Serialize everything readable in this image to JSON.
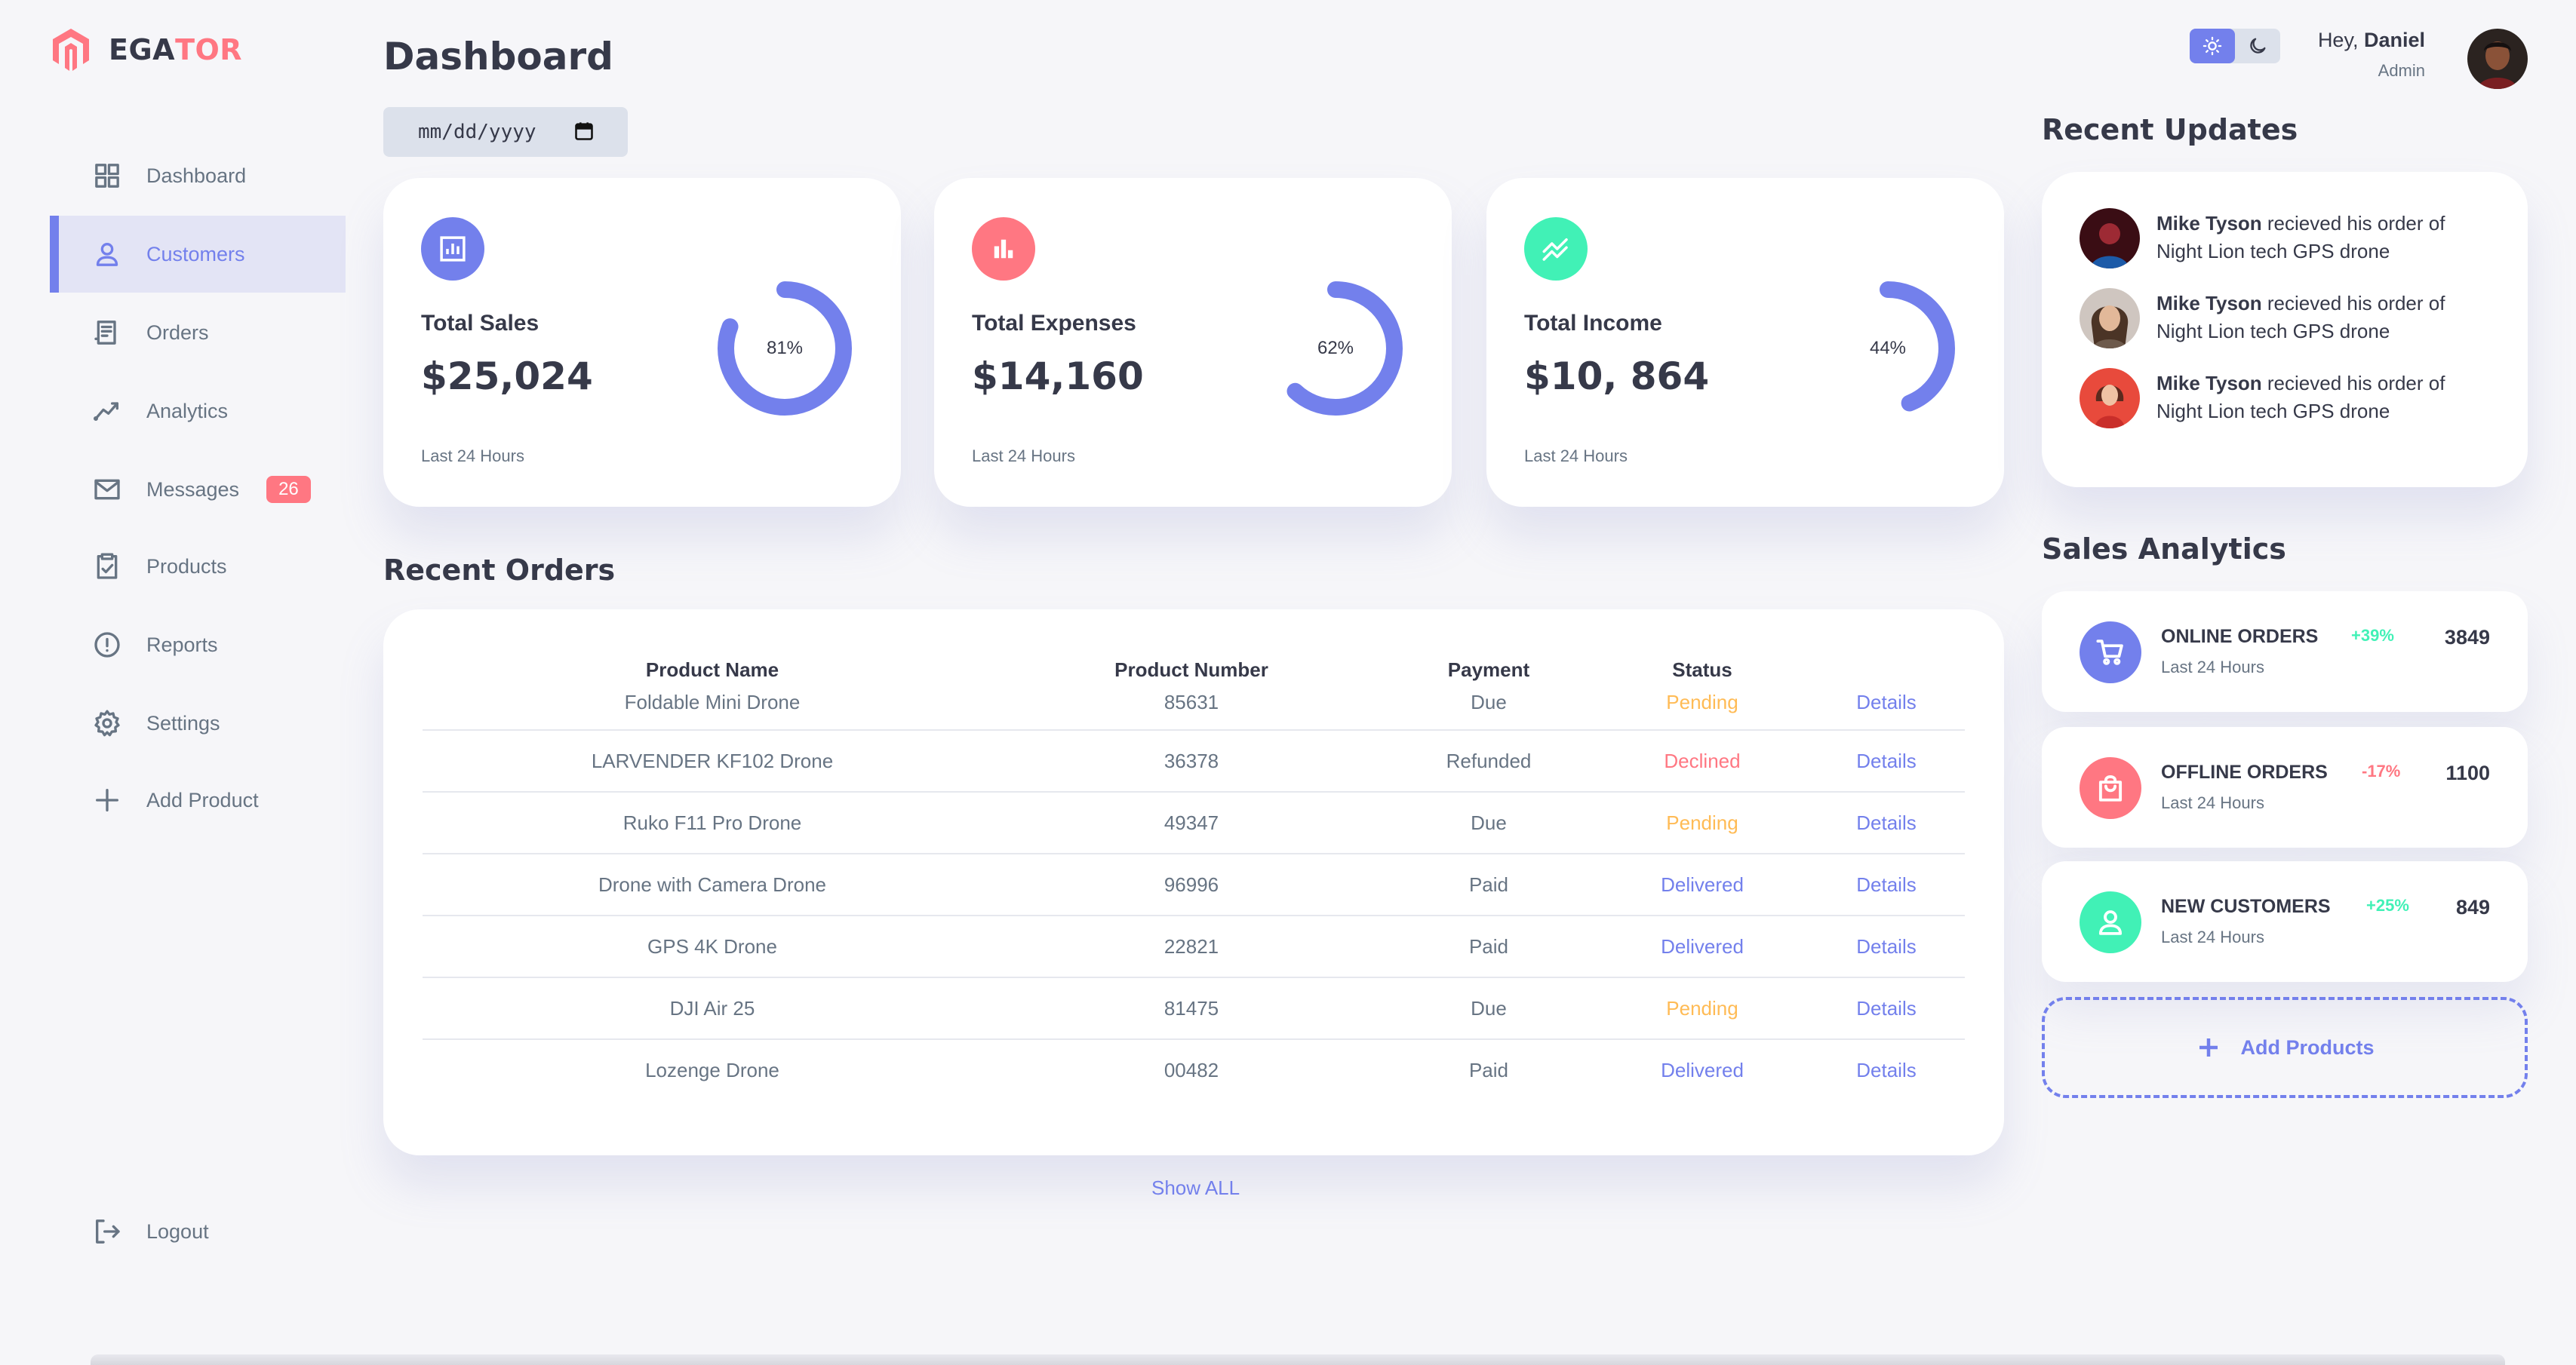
{
  "brand": {
    "part1": "EGA",
    "part2": "TOR",
    "accent": "#ff7782"
  },
  "sidebar": {
    "items": [
      {
        "label": "Dashboard",
        "icon": "grid-icon"
      },
      {
        "label": "Customers",
        "icon": "person-icon",
        "active": true
      },
      {
        "label": "Orders",
        "icon": "receipt-icon"
      },
      {
        "label": "Analytics",
        "icon": "chart-line-icon"
      },
      {
        "label": "Messages",
        "icon": "mail-icon",
        "badge": "26"
      },
      {
        "label": "Products",
        "icon": "clipboard-check-icon"
      },
      {
        "label": "Reports",
        "icon": "alert-circle-icon"
      },
      {
        "label": "Settings",
        "icon": "gear-icon"
      },
      {
        "label": "Add Product",
        "icon": "plus-icon"
      }
    ],
    "logout": "Logout"
  },
  "main": {
    "title": "Dashboard",
    "date_placeholder": "mm/dd/yyyy",
    "cards": [
      {
        "title": "Total Sales",
        "value": "$25,024",
        "sub": "Last 24 Hours",
        "percent": 81,
        "percent_label": "81%",
        "icon_color": "#7380ec"
      },
      {
        "title": "Total Expenses",
        "value": "$14,160",
        "sub": "Last 24 Hours",
        "percent": 62,
        "percent_label": "62%",
        "icon_color": "#ff7782"
      },
      {
        "title": "Total Income",
        "value": "$10, 864",
        "sub": "Last 24 Hours",
        "percent": 44,
        "percent_label": "44%",
        "icon_color": "#41f1b6"
      }
    ],
    "recent_orders": {
      "title": "Recent Orders",
      "headers": [
        "Product Name",
        "Product Number",
        "Payment",
        "Status",
        ""
      ],
      "rows": [
        {
          "name": "Foldable Mini Drone",
          "number": "85631",
          "payment": "Due",
          "status": "Pending",
          "link": "Details"
        },
        {
          "name": "LARVENDER KF102 Drone",
          "number": "36378",
          "payment": "Refunded",
          "status": "Declined",
          "link": "Details"
        },
        {
          "name": "Ruko F11 Pro Drone",
          "number": "49347",
          "payment": "Due",
          "status": "Pending",
          "link": "Details"
        },
        {
          "name": "Drone with Camera Drone",
          "number": "96996",
          "payment": "Paid",
          "status": "Delivered",
          "link": "Details"
        },
        {
          "name": "GPS 4K Drone",
          "number": "22821",
          "payment": "Paid",
          "status": "Delivered",
          "link": "Details"
        },
        {
          "name": "DJI Air 25",
          "number": "81475",
          "payment": "Due",
          "status": "Pending",
          "link": "Details"
        },
        {
          "name": "Lozenge Drone",
          "number": "00482",
          "payment": "Paid",
          "status": "Delivered",
          "link": "Details"
        }
      ],
      "show_all": "Show ALL"
    }
  },
  "right": {
    "greeting": "Hey,",
    "user_name": "Daniel",
    "role": "Admin",
    "recent_updates_title": "Recent Updates",
    "updates": [
      {
        "name": "Mike Tyson",
        "text": " recieved his order of Night Lion tech GPS drone"
      },
      {
        "name": "Mike Tyson",
        "text": " recieved his order of Night Lion tech GPS drone"
      },
      {
        "name": "Mike Tyson",
        "text": " recieved his order of Night Lion tech GPS drone"
      }
    ],
    "sales_analytics_title": "Sales Analytics",
    "analytics": [
      {
        "name": "ONLINE ORDERS",
        "sub": "Last 24 Hours",
        "pct": "+39%",
        "value": "3849",
        "icon": "cart-icon",
        "color": "#7380ec"
      },
      {
        "name": "OFFLINE ORDERS",
        "sub": "Last 24 Hours",
        "pct": "-17%",
        "value": "1100",
        "icon": "shopping-bag-icon",
        "color": "#ff7782"
      },
      {
        "name": "NEW CUSTOMERS",
        "sub": "Last 24 Hours",
        "pct": "+25%",
        "value": "849",
        "icon": "person-icon",
        "color": "#41f1b6"
      }
    ],
    "add_products": "Add Products"
  }
}
